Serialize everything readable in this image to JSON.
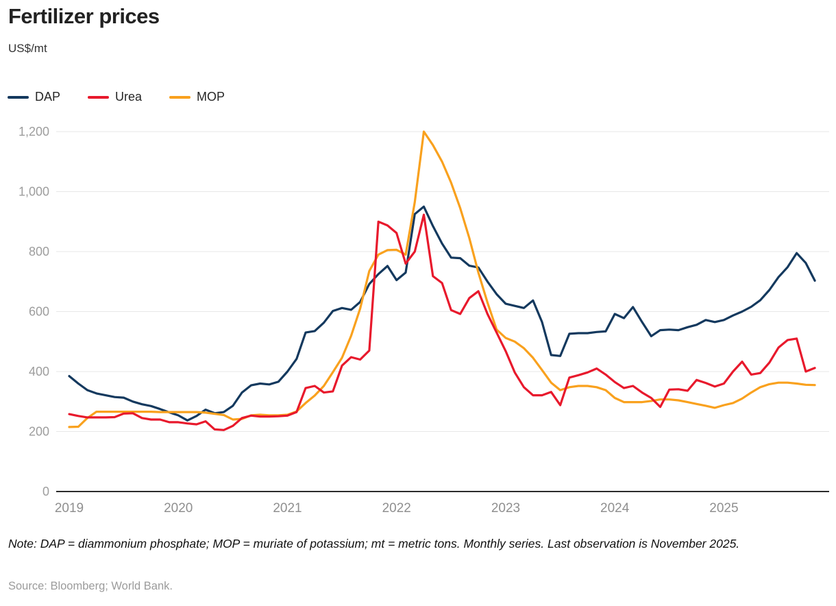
{
  "header": {
    "title": "Fertilizer prices",
    "unit": "US$/mt"
  },
  "legend": {
    "items": [
      {
        "label": "DAP",
        "color": "#14395e"
      },
      {
        "label": "Urea",
        "color": "#e8192c"
      },
      {
        "label": "MOP",
        "color": "#f9a11e"
      }
    ]
  },
  "chart_data": {
    "type": "line",
    "title": "Fertilizer prices",
    "ylabel": "US$/mt",
    "xlabel": "",
    "frequency": "monthly",
    "x_start": "2019-01",
    "x_end": "2025-11",
    "grid": "horizontal",
    "legend_position": "top-left",
    "ylim": [
      0,
      1260
    ],
    "y_ticks": [
      {
        "value": 0,
        "label": "0"
      },
      {
        "value": 200,
        "label": "200"
      },
      {
        "value": 400,
        "label": "400"
      },
      {
        "value": 600,
        "label": "600"
      },
      {
        "value": 800,
        "label": "800"
      },
      {
        "value": 1000,
        "label": "1,000"
      },
      {
        "value": 1200,
        "label": "1,200"
      }
    ],
    "x_year_ticks": [
      {
        "label": "2019",
        "month_index": 0
      },
      {
        "label": "2020",
        "month_index": 12
      },
      {
        "label": "2021",
        "month_index": 24
      },
      {
        "label": "2022",
        "month_index": 36
      },
      {
        "label": "2023",
        "month_index": 48
      },
      {
        "label": "2024",
        "month_index": 60
      },
      {
        "label": "2025",
        "month_index": 72
      }
    ],
    "series": [
      {
        "name": "DAP",
        "color": "#14395e",
        "values": [
          385,
          360,
          338,
          327,
          321,
          315,
          313,
          300,
          291,
          285,
          275,
          264,
          254,
          237,
          252,
          273,
          261,
          265,
          286,
          330,
          354,
          360,
          357,
          366,
          400,
          442,
          530,
          535,
          563,
          602,
          612,
          606,
          632,
          692,
          725,
          752,
          705,
          730,
          925,
          950,
          885,
          827,
          780,
          778,
          753,
          747,
          700,
          658,
          626,
          619,
          612,
          637,
          565,
          455,
          452,
          526,
          528,
          528,
          532,
          534,
          592,
          578,
          615,
          565,
          518,
          538,
          540,
          538,
          548,
          556,
          572,
          565,
          572,
          587,
          600,
          616,
          638,
          672,
          715,
          748,
          795,
          762,
          703
        ]
      },
      {
        "name": "Urea",
        "color": "#e8192c",
        "values": [
          258,
          252,
          247,
          247,
          247,
          248,
          260,
          261,
          245,
          240,
          240,
          231,
          231,
          227,
          224,
          234,
          207,
          205,
          219,
          245,
          253,
          250,
          250,
          251,
          253,
          265,
          345,
          352,
          330,
          334,
          420,
          448,
          440,
          470,
          900,
          887,
          862,
          760,
          800,
          923,
          718,
          695,
          605,
          592,
          645,
          668,
          592,
          530,
          468,
          397,
          348,
          321,
          321,
          332,
          288,
          380,
          388,
          397,
          410,
          390,
          365,
          345,
          352,
          330,
          312,
          282,
          340,
          341,
          336,
          372,
          362,
          350,
          360,
          400,
          433,
          390,
          395,
          430,
          480,
          505,
          510,
          400,
          412
        ]
      },
      {
        "name": "MOP",
        "color": "#f9a11e",
        "values": [
          215,
          216,
          245,
          266,
          266,
          266,
          266,
          266,
          266,
          266,
          265,
          265,
          265,
          265,
          265,
          263,
          259,
          255,
          240,
          242,
          254,
          256,
          254,
          254,
          256,
          267,
          295,
          320,
          352,
          398,
          446,
          519,
          610,
          735,
          790,
          805,
          806,
          790,
          965,
          1200,
          1155,
          1100,
          1030,
          945,
          845,
          730,
          630,
          540,
          512,
          500,
          478,
          446,
          405,
          363,
          338,
          348,
          352,
          352,
          348,
          338,
          312,
          298,
          298,
          298,
          302,
          307,
          307,
          304,
          298,
          292,
          286,
          279,
          288,
          295,
          310,
          330,
          348,
          358,
          363,
          363,
          360,
          356,
          355
        ]
      }
    ]
  },
  "footer": {
    "note": "Note: DAP = diammonium phosphate; MOP = muriate of potassium; mt = metric tons. Monthly series. Last observation is November 2025.",
    "source": "Source: Bloomberg; World Bank."
  }
}
